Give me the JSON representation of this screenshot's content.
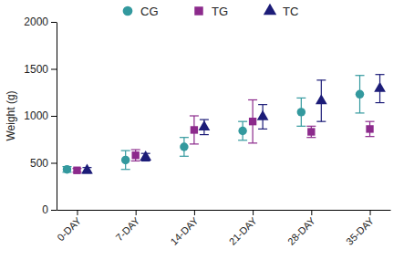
{
  "chart_data": {
    "type": "scatter",
    "y_label": "Weight (g)",
    "categories": [
      "0-DAY",
      "7-DAY",
      "14-DAY",
      "21-DAY",
      "28-DAY",
      "35-DAY"
    ],
    "series": [
      {
        "name": "CG",
        "color": "#33999e",
        "marker": "circle",
        "values": [
          430,
          530,
          670,
          840,
          1040,
          1230
        ],
        "errors": [
          30,
          100,
          100,
          100,
          150,
          200
        ]
      },
      {
        "name": "TG",
        "color": "#8c2a8c",
        "marker": "square",
        "values": [
          420,
          580,
          850,
          940,
          830,
          860
        ],
        "errors": [
          20,
          60,
          150,
          230,
          60,
          80
        ]
      },
      {
        "name": "TC",
        "color": "#1c1c78",
        "marker": "triangle",
        "values": [
          420,
          560,
          880,
          990,
          1160,
          1290
        ],
        "errors": [
          30,
          40,
          80,
          130,
          220,
          150
        ]
      }
    ],
    "ylim": [
      0,
      2000
    ],
    "yticks": [
      0,
      500,
      1000,
      1500,
      2000
    ],
    "legend": "top"
  }
}
